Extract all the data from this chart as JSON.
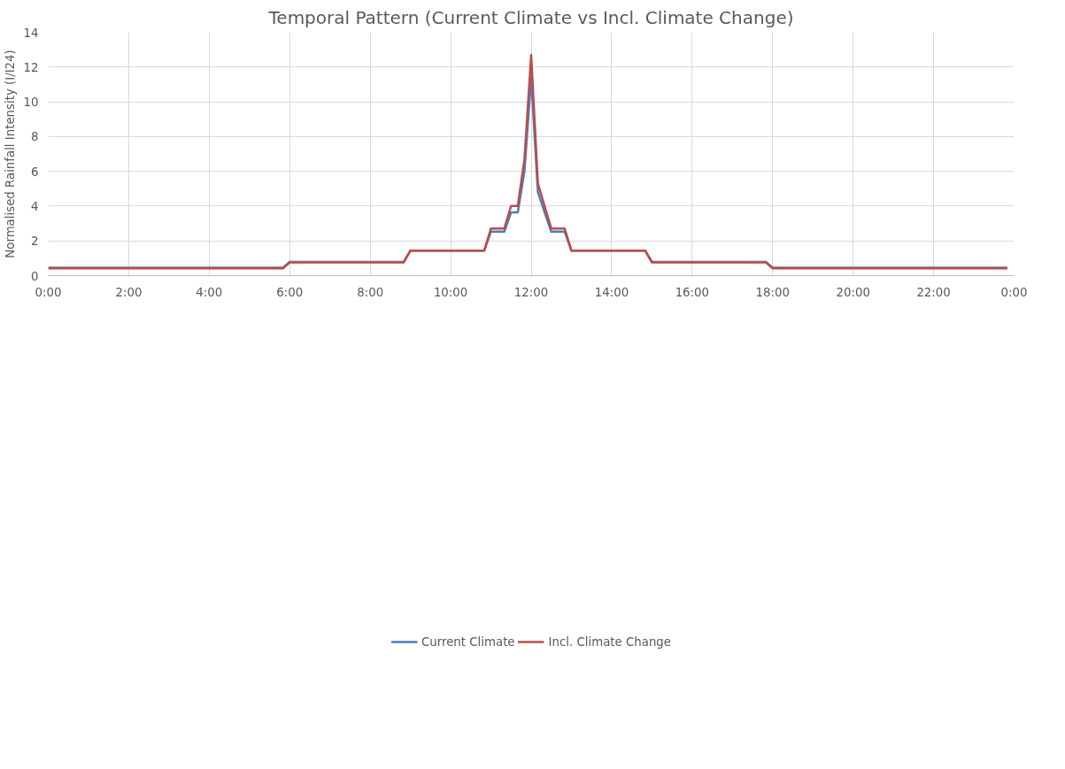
{
  "chart_data": {
    "type": "line",
    "title": "Temporal Pattern (Current Climate vs Incl. Climate Change)",
    "ylabel": "Normalised Rainfall Intensity (I/I24)",
    "x": [
      0,
      5.833,
      6,
      8.833,
      9,
      10.833,
      11,
      11.333,
      11.5,
      11.667,
      11.833,
      12,
      12.167,
      12.333,
      12.5,
      12.833,
      13,
      14.833,
      15,
      17.833,
      18,
      23.833
    ],
    "series": [
      {
        "name": "Current Climate",
        "color": "#4a7ebb",
        "values": [
          0.46,
          0.46,
          0.79,
          0.79,
          1.44,
          1.44,
          2.53,
          2.53,
          3.64,
          3.64,
          6.0,
          11.4,
          4.8,
          3.65,
          2.53,
          2.53,
          1.44,
          1.44,
          0.79,
          0.79,
          0.46,
          0.46
        ]
      },
      {
        "name": "Incl. Climate Change",
        "color": "#be4b48",
        "values": [
          0.42,
          0.42,
          0.76,
          0.76,
          1.44,
          1.44,
          2.71,
          2.71,
          4.01,
          4.01,
          6.7,
          12.7,
          5.3,
          4.0,
          2.71,
          2.71,
          1.44,
          1.44,
          0.76,
          0.76,
          0.42,
          0.42
        ]
      }
    ],
    "xlim": [
      0,
      24
    ],
    "ylim": [
      0,
      14
    ],
    "xticks": [
      {
        "value": 0,
        "label": "0:00"
      },
      {
        "value": 2,
        "label": "2:00"
      },
      {
        "value": 4,
        "label": "4:00"
      },
      {
        "value": 6,
        "label": "6:00"
      },
      {
        "value": 8,
        "label": "8:00"
      },
      {
        "value": 10,
        "label": "10:00"
      },
      {
        "value": 12,
        "label": "12:00"
      },
      {
        "value": 14,
        "label": "14:00"
      },
      {
        "value": 16,
        "label": "16:00"
      },
      {
        "value": 18,
        "label": "18:00"
      },
      {
        "value": 20,
        "label": "20:00"
      },
      {
        "value": 22,
        "label": "22:00"
      },
      {
        "value": 24,
        "label": "0:00"
      }
    ],
    "yticks": [
      0,
      2,
      4,
      6,
      8,
      10,
      12,
      14
    ],
    "grid": true,
    "legend": "bottom",
    "marker": "none",
    "line_style": "solid"
  }
}
